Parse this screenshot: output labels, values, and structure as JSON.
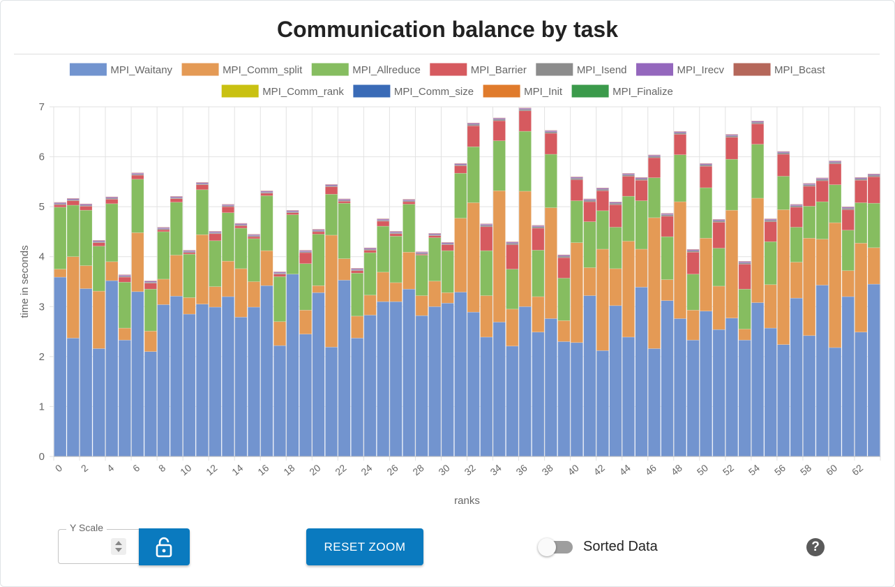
{
  "chart_data": {
    "type": "bar",
    "stacked": true,
    "title": "Communication balance by task",
    "xlabel": "ranks",
    "ylabel": "time in seconds",
    "ylim": [
      0,
      7
    ],
    "yticks": [
      0,
      1,
      2,
      3,
      4,
      5,
      6,
      7
    ],
    "xtick_step": 2,
    "grid": true,
    "legend_position": "top",
    "categories": [
      "0",
      "1",
      "2",
      "3",
      "4",
      "5",
      "6",
      "7",
      "8",
      "9",
      "10",
      "11",
      "12",
      "13",
      "14",
      "15",
      "16",
      "17",
      "18",
      "19",
      "20",
      "21",
      "22",
      "23",
      "24",
      "25",
      "26",
      "27",
      "28",
      "29",
      "30",
      "31",
      "32",
      "33",
      "34",
      "35",
      "36",
      "37",
      "38",
      "39",
      "40",
      "41",
      "42",
      "43",
      "44",
      "45",
      "46",
      "47",
      "48",
      "49",
      "50",
      "51",
      "52",
      "53",
      "54",
      "55",
      "56",
      "57",
      "58",
      "59",
      "60",
      "61",
      "62",
      "63"
    ],
    "series": [
      {
        "name": "MPI_Waitany",
        "color": "#7294cf",
        "values": [
          3.59,
          2.37,
          3.36,
          2.16,
          3.52,
          2.33,
          3.3,
          2.1,
          3.04,
          3.21,
          2.85,
          3.05,
          2.99,
          3.2,
          2.79,
          2.99,
          3.42,
          2.22,
          3.65,
          2.45,
          3.28,
          2.19,
          3.53,
          2.37,
          2.83,
          3.1,
          3.1,
          3.35,
          2.82,
          3.0,
          3.07,
          3.29,
          2.89,
          2.39,
          2.69,
          2.21,
          3.0,
          2.49,
          2.76,
          2.3,
          2.28,
          3.22,
          2.12,
          3.02,
          2.39,
          3.39,
          2.16,
          3.12,
          2.76,
          2.33,
          2.91,
          2.54,
          2.77,
          2.33,
          3.08,
          2.57,
          2.24,
          3.17,
          2.42,
          3.43,
          2.18,
          3.2,
          2.49,
          3.45
        ]
      },
      {
        "name": "MPI_Comm_split",
        "color": "#e49a55",
        "values": [
          0.16,
          1.63,
          0.46,
          1.15,
          0.38,
          0.24,
          1.18,
          0.41,
          0.51,
          0.82,
          0.33,
          1.39,
          0.41,
          0.71,
          0.97,
          0.51,
          0.7,
          0.48,
          0.0,
          0.48,
          0.14,
          2.24,
          0.43,
          0.44,
          0.4,
          0.59,
          0.38,
          0.74,
          0.4,
          0.51,
          0.21,
          1.48,
          2.19,
          0.83,
          2.63,
          0.74,
          2.31,
          0.71,
          2.22,
          0.42,
          2.0,
          0.56,
          2.03,
          0.74,
          1.92,
          0.76,
          2.62,
          0.42,
          2.34,
          0.6,
          1.46,
          0.87,
          2.16,
          0.22,
          2.09,
          0.87,
          2.7,
          0.72,
          1.95,
          0.92,
          2.5,
          0.52,
          1.78,
          0.73
        ]
      },
      {
        "name": "MPI_Allreduce",
        "color": "#86bd60",
        "values": [
          1.24,
          1.03,
          1.11,
          0.9,
          1.16,
          0.92,
          1.07,
          0.84,
          0.95,
          1.06,
          0.87,
          0.9,
          0.92,
          0.97,
          0.81,
          0.86,
          1.1,
          0.9,
          1.19,
          0.93,
          1.03,
          0.82,
          1.11,
          0.86,
          0.85,
          0.92,
          0.93,
          0.96,
          0.81,
          0.87,
          0.84,
          0.9,
          1.12,
          0.9,
          1.0,
          0.8,
          1.2,
          0.93,
          1.07,
          0.85,
          0.84,
          0.92,
          0.77,
          0.83,
          0.9,
          0.97,
          0.8,
          0.86,
          0.94,
          0.72,
          1.01,
          0.76,
          1.02,
          0.8,
          1.08,
          0.86,
          0.67,
          0.7,
          0.64,
          0.75,
          0.76,
          0.81,
          0.81,
          0.89
        ]
      },
      {
        "name": "MPI_Barrier",
        "color": "#d65a5f",
        "values": [
          0.05,
          0.09,
          0.08,
          0.07,
          0.09,
          0.1,
          0.08,
          0.12,
          0.04,
          0.07,
          0.03,
          0.1,
          0.14,
          0.12,
          0.05,
          0.04,
          0.05,
          0.05,
          0.04,
          0.22,
          0.05,
          0.15,
          0.04,
          0.05,
          0.05,
          0.1,
          0.05,
          0.05,
          0.02,
          0.04,
          0.12,
          0.15,
          0.42,
          0.48,
          0.4,
          0.49,
          0.41,
          0.44,
          0.42,
          0.41,
          0.42,
          0.4,
          0.4,
          0.45,
          0.4,
          0.41,
          0.4,
          0.41,
          0.41,
          0.44,
          0.43,
          0.52,
          0.44,
          0.5,
          0.41,
          0.4,
          0.44,
          0.4,
          0.4,
          0.42,
          0.42,
          0.41,
          0.45,
          0.53
        ]
      },
      {
        "name": "MPI_Isend",
        "color": "#8c8c8c",
        "values": [
          0.02,
          0.02,
          0.02,
          0.02,
          0.02,
          0.02,
          0.02,
          0.02,
          0.02,
          0.02,
          0.02,
          0.02,
          0.02,
          0.02,
          0.02,
          0.02,
          0.02,
          0.02,
          0.02,
          0.02,
          0.02,
          0.02,
          0.02,
          0.02,
          0.02,
          0.02,
          0.02,
          0.02,
          0.02,
          0.02,
          0.02,
          0.02,
          0.03,
          0.03,
          0.03,
          0.03,
          0.03,
          0.03,
          0.03,
          0.03,
          0.03,
          0.03,
          0.03,
          0.03,
          0.03,
          0.03,
          0.03,
          0.03,
          0.03,
          0.03,
          0.03,
          0.03,
          0.03,
          0.03,
          0.03,
          0.03,
          0.03,
          0.03,
          0.03,
          0.03,
          0.03,
          0.03,
          0.03,
          0.03
        ]
      },
      {
        "name": "MPI_Irecv",
        "color": "#9467bd",
        "values": [
          0.02,
          0.02,
          0.02,
          0.02,
          0.02,
          0.02,
          0.02,
          0.02,
          0.02,
          0.02,
          0.02,
          0.02,
          0.02,
          0.02,
          0.02,
          0.02,
          0.02,
          0.02,
          0.02,
          0.02,
          0.02,
          0.02,
          0.02,
          0.02,
          0.02,
          0.02,
          0.02,
          0.02,
          0.02,
          0.02,
          0.02,
          0.02,
          0.02,
          0.02,
          0.02,
          0.02,
          0.02,
          0.02,
          0.02,
          0.02,
          0.02,
          0.02,
          0.02,
          0.02,
          0.02,
          0.02,
          0.02,
          0.02,
          0.02,
          0.02,
          0.02,
          0.02,
          0.02,
          0.02,
          0.02,
          0.02,
          0.02,
          0.02,
          0.02,
          0.02,
          0.02,
          0.02,
          0.02,
          0.02
        ]
      },
      {
        "name": "MPI_Bcast",
        "color": "#b5675a",
        "values": [
          0.01,
          0.01,
          0.01,
          0.01,
          0.01,
          0.01,
          0.01,
          0.01,
          0.01,
          0.01,
          0.01,
          0.01,
          0.01,
          0.01,
          0.01,
          0.01,
          0.01,
          0.01,
          0.01,
          0.01,
          0.01,
          0.01,
          0.01,
          0.01,
          0.01,
          0.01,
          0.01,
          0.01,
          0.01,
          0.01,
          0.01,
          0.01,
          0.01,
          0.01,
          0.01,
          0.01,
          0.01,
          0.01,
          0.01,
          0.01,
          0.01,
          0.01,
          0.01,
          0.01,
          0.01,
          0.01,
          0.01,
          0.01,
          0.01,
          0.01,
          0.01,
          0.01,
          0.01,
          0.01,
          0.01,
          0.01,
          0.01,
          0.01,
          0.01,
          0.01,
          0.01,
          0.01,
          0.01,
          0.01
        ]
      },
      {
        "name": "MPI_Comm_rank",
        "color": "#c9c112",
        "values": [
          0,
          0,
          0,
          0,
          0,
          0,
          0,
          0,
          0,
          0,
          0,
          0,
          0,
          0,
          0,
          0,
          0,
          0,
          0,
          0,
          0,
          0,
          0,
          0,
          0,
          0,
          0,
          0,
          0,
          0,
          0,
          0,
          0,
          0,
          0,
          0,
          0,
          0,
          0,
          0,
          0,
          0,
          0,
          0,
          0,
          0,
          0,
          0,
          0,
          0,
          0,
          0,
          0,
          0,
          0,
          0,
          0,
          0,
          0,
          0,
          0,
          0,
          0,
          0
        ]
      },
      {
        "name": "MPI_Comm_size",
        "color": "#3a6bb7",
        "values": [
          0,
          0,
          0,
          0,
          0,
          0,
          0,
          0,
          0,
          0,
          0,
          0,
          0,
          0,
          0,
          0,
          0,
          0,
          0,
          0,
          0,
          0,
          0,
          0,
          0,
          0,
          0,
          0,
          0,
          0,
          0,
          0,
          0,
          0,
          0,
          0,
          0,
          0,
          0,
          0,
          0,
          0,
          0,
          0,
          0,
          0,
          0,
          0,
          0,
          0,
          0,
          0,
          0,
          0,
          0,
          0,
          0,
          0,
          0,
          0,
          0,
          0,
          0,
          0
        ]
      },
      {
        "name": "MPI_Init",
        "color": "#e07b2c",
        "values": [
          0,
          0,
          0,
          0,
          0,
          0,
          0,
          0,
          0,
          0,
          0,
          0,
          0,
          0,
          0,
          0,
          0,
          0,
          0,
          0,
          0,
          0,
          0,
          0,
          0,
          0,
          0,
          0,
          0,
          0,
          0,
          0,
          0,
          0,
          0,
          0,
          0,
          0,
          0,
          0,
          0,
          0,
          0,
          0,
          0,
          0,
          0,
          0,
          0,
          0,
          0,
          0,
          0,
          0,
          0,
          0,
          0,
          0,
          0,
          0,
          0,
          0,
          0,
          0
        ]
      },
      {
        "name": "MPI_Finalize",
        "color": "#3b9a4b",
        "values": [
          0,
          0,
          0,
          0,
          0,
          0,
          0,
          0,
          0,
          0,
          0,
          0,
          0,
          0,
          0,
          0,
          0,
          0,
          0,
          0,
          0,
          0,
          0,
          0,
          0,
          0,
          0,
          0,
          0,
          0,
          0,
          0,
          0,
          0,
          0,
          0,
          0,
          0,
          0,
          0,
          0,
          0,
          0,
          0,
          0,
          0,
          0,
          0,
          0,
          0,
          0,
          0,
          0,
          0,
          0,
          0,
          0,
          0,
          0,
          0,
          0,
          0,
          0,
          0
        ]
      }
    ]
  },
  "controls": {
    "y_scale_label": "Y Scale",
    "y_scale_value": "",
    "lock_icon": "lock-open-icon",
    "reset_zoom_label": "RESET ZOOM",
    "sorted_toggle_label": "Sorted Data",
    "sorted_toggle_on": false,
    "help_icon": "help-icon",
    "help_glyph": "?",
    "accent_color": "#0a7abf"
  }
}
